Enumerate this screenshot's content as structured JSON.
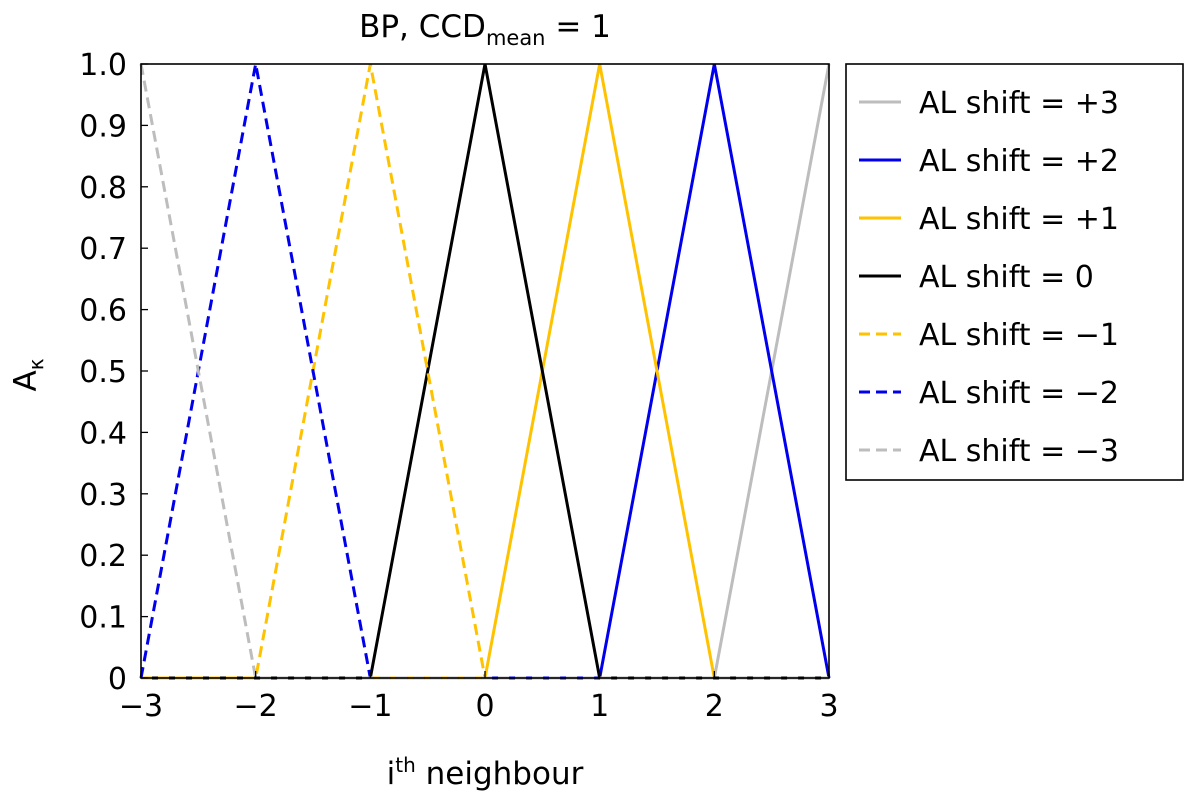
{
  "chart_data": {
    "type": "line",
    "title": {
      "prefix": "BP,  CCD",
      "subscript": "mean",
      "suffix": " = 1"
    },
    "xlabel": {
      "base": "i",
      "superscript": "th",
      "rest": " neighbour"
    },
    "ylabel": {
      "base": "A",
      "subscript": "κ"
    },
    "xlim": [
      -3,
      3
    ],
    "ylim": [
      0,
      1
    ],
    "xticks": [
      -3,
      -2,
      -1,
      0,
      1,
      2,
      3
    ],
    "xtick_labels": [
      "−3",
      "−2",
      "−1",
      "0",
      "1",
      "2",
      "3"
    ],
    "yticks": [
      0,
      0.1,
      0.2,
      0.3,
      0.4,
      0.5,
      0.6,
      0.7,
      0.8,
      0.9,
      1.0
    ],
    "ytick_labels": [
      "0",
      "0.1",
      "0.2",
      "0.3",
      "0.4",
      "0.5",
      "0.6",
      "0.7",
      "0.8",
      "0.9",
      "1.0"
    ],
    "grid": false,
    "legend_position": "outside-right-top",
    "series": [
      {
        "name": "AL shift = +3",
        "color": "#bdbdbd",
        "style": "solid",
        "x": [
          -3,
          2,
          3
        ],
        "y": [
          0,
          0,
          1
        ]
      },
      {
        "name": "AL shift = +2",
        "color": "#0000ee",
        "style": "solid",
        "x": [
          -3,
          1,
          2,
          3
        ],
        "y": [
          0,
          0,
          1,
          0
        ]
      },
      {
        "name": "AL shift = +1",
        "color": "#ffc200",
        "style": "solid",
        "x": [
          -3,
          0,
          1,
          2,
          3
        ],
        "y": [
          0,
          0,
          1,
          0,
          0
        ]
      },
      {
        "name": "AL shift = 0",
        "color": "#000000",
        "style": "solid",
        "x": [
          -3,
          -1,
          0,
          1,
          3
        ],
        "y": [
          0,
          0,
          1,
          0,
          0
        ]
      },
      {
        "name": "AL shift = −1",
        "color": "#ffc200",
        "style": "dashed",
        "x": [
          -3,
          -2,
          -1,
          0,
          3
        ],
        "y": [
          0,
          0,
          1,
          0,
          0
        ]
      },
      {
        "name": "AL shift = −2",
        "color": "#0000ee",
        "style": "dashed",
        "x": [
          -3,
          -2,
          -1,
          3
        ],
        "y": [
          0,
          1,
          0,
          0
        ]
      },
      {
        "name": "AL shift = −3",
        "color": "#bdbdbd",
        "style": "dashed",
        "x": [
          -3,
          -2,
          3
        ],
        "y": [
          1,
          0,
          0
        ]
      }
    ]
  }
}
